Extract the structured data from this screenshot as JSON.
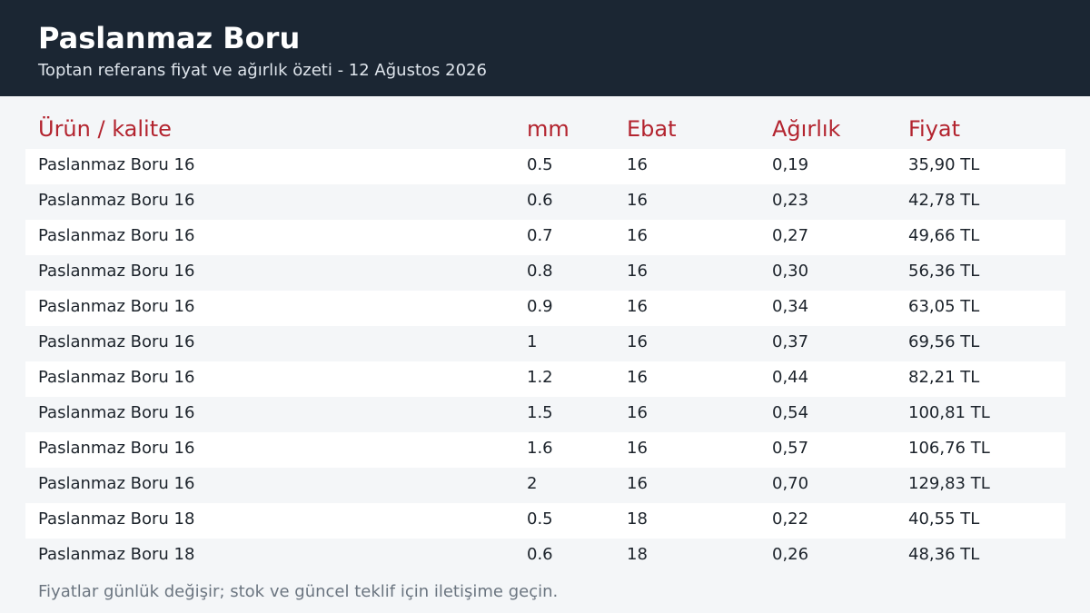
{
  "header": {
    "title": "Paslanmaz Boru",
    "subtitle": "Toptan referans fiyat ve ağırlık özeti - 12 Ağustos 2026"
  },
  "table": {
    "columns": [
      "Ürün / kalite",
      "mm",
      "Ebat",
      "Ağırlık",
      "Fiyat"
    ],
    "rows": [
      [
        "Paslanmaz Boru 16",
        "0.5",
        "16",
        "0,19",
        "35,90 TL"
      ],
      [
        "Paslanmaz Boru 16",
        "0.6",
        "16",
        "0,23",
        "42,78 TL"
      ],
      [
        "Paslanmaz Boru 16",
        "0.7",
        "16",
        "0,27",
        "49,66 TL"
      ],
      [
        "Paslanmaz Boru 16",
        "0.8",
        "16",
        "0,30",
        "56,36 TL"
      ],
      [
        "Paslanmaz Boru 16",
        "0.9",
        "16",
        "0,34",
        "63,05 TL"
      ],
      [
        "Paslanmaz Boru 16",
        "1",
        "16",
        "0,37",
        "69,56 TL"
      ],
      [
        "Paslanmaz Boru 16",
        "1.2",
        "16",
        "0,44",
        "82,21 TL"
      ],
      [
        "Paslanmaz Boru 16",
        "1.5",
        "16",
        "0,54",
        "100,81 TL"
      ],
      [
        "Paslanmaz Boru 16",
        "1.6",
        "16",
        "0,57",
        "106,76 TL"
      ],
      [
        "Paslanmaz Boru 16",
        "2",
        "16",
        "0,70",
        "129,83 TL"
      ],
      [
        "Paslanmaz Boru 18",
        "0.5",
        "18",
        "0,22",
        "40,55 TL"
      ],
      [
        "Paslanmaz Boru 18",
        "0.6",
        "18",
        "0,26",
        "48,36 TL"
      ]
    ]
  },
  "footer": {
    "note": "Fiyatlar günlük değişir; stok ve güncel teklif için iletişime geçin."
  },
  "colors": {
    "header_bg": "#1b2633",
    "accent": "#b3242f",
    "page_bg": "#f4f6f8"
  }
}
